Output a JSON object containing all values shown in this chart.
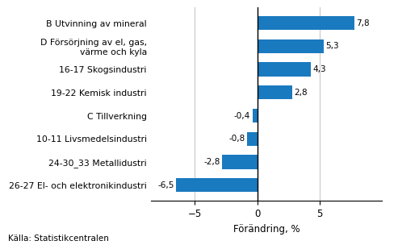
{
  "categories": [
    "26-27 El- och elektronikindustri",
    "24-30_33 Metallidustri",
    "10-11 Livsmedelsindustri",
    "C Tillverkning",
    "19-22 Kemisk industri",
    "16-17 Skogsindustri",
    "D Försörjning av el, gas,\nvärme och kyla",
    "B Utvinning av mineral"
  ],
  "values": [
    -6.5,
    -2.8,
    -0.8,
    -0.4,
    2.8,
    4.3,
    5.3,
    7.8
  ],
  "bar_color": "#1a7abf",
  "xlabel": "Förändring, %",
  "xlim": [
    -8.5,
    10.0
  ],
  "xticks": [
    -5,
    0,
    5
  ],
  "source": "Källa: Statistikcentralen",
  "bar_height": 0.6,
  "grid_color": "#c8c8c8",
  "value_labels": [
    "-6,5",
    "-2,8",
    "-0,8",
    "-0,4",
    "2,8",
    "4,3",
    "5,3",
    "7,8"
  ]
}
